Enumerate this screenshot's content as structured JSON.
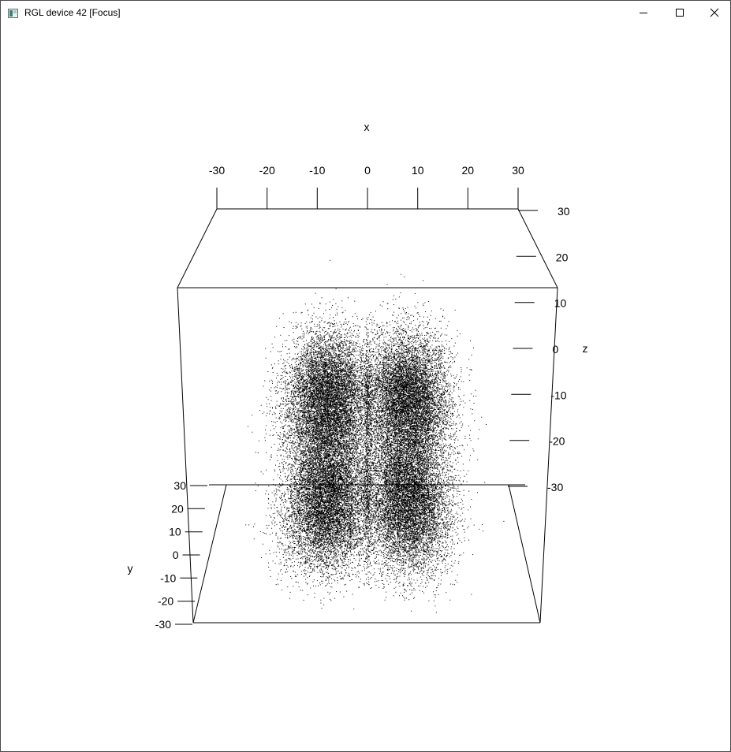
{
  "window": {
    "title": "RGL device 42 [Focus]",
    "controls": {
      "minimize": "minimize-icon",
      "maximize": "maximize-icon",
      "close": "close-icon"
    }
  },
  "colors": {
    "points": "#000000",
    "box": "#000000",
    "background": "#ffffff"
  },
  "chart_data": {
    "type": "scatter",
    "dimensions": 3,
    "title": "",
    "xlabel": "x",
    "ylabel": "y",
    "zlabel": "z",
    "xlim": [
      -30,
      30
    ],
    "ylim": [
      -30,
      30
    ],
    "zlim": [
      -30,
      30
    ],
    "x_ticks": [
      "-30",
      "-20",
      "-10",
      "0",
      "10",
      "20",
      "30"
    ],
    "y_ticks": [
      "-30",
      "-20",
      "-10",
      "0",
      "10",
      "20",
      "30"
    ],
    "z_ticks": [
      "-30",
      "-20",
      "-10",
      "0",
      "10",
      "20",
      "30"
    ],
    "grid": false,
    "box": true,
    "point_color": "#000000",
    "point_count_estimate": 40000,
    "clusters": [
      {
        "x_center": -7,
        "z_center": 0,
        "spread": 5
      },
      {
        "x_center": -7,
        "z_center": -20,
        "spread": 5
      },
      {
        "x_center": 7,
        "z_center": 0,
        "spread": 5
      },
      {
        "x_center": 7,
        "z_center": -20,
        "spread": 5
      }
    ]
  }
}
